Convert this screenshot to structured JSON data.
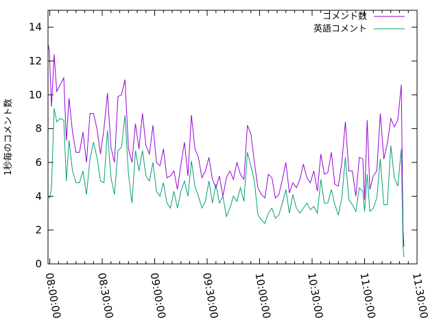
{
  "chart_data": {
    "type": "line",
    "title": "",
    "xlabel": "",
    "ylabel": "1秒毎のコメント数",
    "x_unit": "time",
    "xlim": [
      "07:59:00",
      "11:30:00"
    ],
    "ylim": [
      0,
      15
    ],
    "x_ticks": [
      "08:00:00",
      "08:30:00",
      "09:00:00",
      "09:30:00",
      "10:00:00",
      "10:30:00",
      "11:00:00",
      "11:30:00"
    ],
    "y_ticks": [
      0,
      2,
      4,
      6,
      8,
      10,
      12,
      14
    ],
    "grid": false,
    "legend": "top-right",
    "series": [
      {
        "name": "コメント数",
        "color": "#9400d3",
        "points": [
          [
            "07:59:00",
            13.0
          ],
          [
            "07:59:45",
            12.6
          ],
          [
            "08:01:00",
            9.3
          ],
          [
            "08:02:30",
            12.4
          ],
          [
            "08:04:00",
            10.2
          ],
          [
            "08:06:00",
            10.6
          ],
          [
            "08:08:00",
            11.0
          ],
          [
            "08:09:30",
            7.3
          ],
          [
            "08:11:00",
            9.8
          ],
          [
            "08:13:00",
            7.8
          ],
          [
            "08:15:00",
            6.6
          ],
          [
            "08:17:00",
            6.6
          ],
          [
            "08:19:00",
            7.8
          ],
          [
            "08:21:00",
            6.0
          ],
          [
            "08:23:00",
            8.9
          ],
          [
            "08:25:00",
            8.9
          ],
          [
            "08:27:00",
            8.0
          ],
          [
            "08:29:00",
            6.5
          ],
          [
            "08:31:00",
            8.0
          ],
          [
            "08:33:00",
            10.1
          ],
          [
            "08:35:00",
            6.9
          ],
          [
            "08:37:00",
            6.0
          ],
          [
            "08:39:00",
            9.9
          ],
          [
            "08:41:00",
            10.0
          ],
          [
            "08:43:00",
            10.9
          ],
          [
            "08:45:00",
            6.8
          ],
          [
            "08:47:00",
            6.0
          ],
          [
            "08:49:00",
            8.3
          ],
          [
            "08:51:00",
            6.8
          ],
          [
            "08:53:00",
            8.9
          ],
          [
            "08:55:00",
            7.0
          ],
          [
            "08:57:00",
            6.5
          ],
          [
            "08:59:00",
            8.2
          ],
          [
            "09:01:00",
            6.0
          ],
          [
            "09:03:00",
            5.8
          ],
          [
            "09:05:00",
            6.8
          ],
          [
            "09:07:00",
            5.1
          ],
          [
            "09:09:00",
            5.2
          ],
          [
            "09:11:00",
            5.5
          ],
          [
            "09:13:00",
            4.4
          ],
          [
            "09:15:00",
            5.9
          ],
          [
            "09:17:00",
            7.2
          ],
          [
            "09:19:00",
            5.2
          ],
          [
            "09:21:00",
            8.8
          ],
          [
            "09:23:00",
            6.8
          ],
          [
            "09:25:00",
            6.3
          ],
          [
            "09:27:00",
            5.1
          ],
          [
            "09:29:00",
            5.5
          ],
          [
            "09:31:00",
            6.3
          ],
          [
            "09:33:00",
            5.0
          ],
          [
            "09:35:00",
            4.5
          ],
          [
            "09:37:00",
            5.2
          ],
          [
            "09:39:00",
            4.0
          ],
          [
            "09:41:00",
            5.1
          ],
          [
            "09:43:00",
            5.5
          ],
          [
            "09:45:00",
            5.0
          ],
          [
            "09:47:00",
            6.0
          ],
          [
            "09:49:00",
            5.3
          ],
          [
            "09:51:00",
            5.0
          ],
          [
            "09:53:00",
            8.2
          ],
          [
            "09:55:00",
            7.7
          ],
          [
            "09:57:00",
            6.0
          ],
          [
            "09:59:00",
            4.5
          ],
          [
            "10:01:00",
            4.1
          ],
          [
            "10:03:00",
            3.9
          ],
          [
            "10:05:00",
            5.3
          ],
          [
            "10:07:00",
            5.1
          ],
          [
            "10:09:00",
            3.9
          ],
          [
            "10:11:00",
            4.1
          ],
          [
            "10:13:00",
            5.0
          ],
          [
            "10:15:00",
            6.0
          ],
          [
            "10:17:00",
            4.2
          ],
          [
            "10:19:00",
            4.8
          ],
          [
            "10:21:00",
            4.5
          ],
          [
            "10:23:00",
            5.0
          ],
          [
            "10:25:00",
            5.9
          ],
          [
            "10:27:00",
            5.1
          ],
          [
            "10:29:00",
            4.8
          ],
          [
            "10:31:00",
            5.5
          ],
          [
            "10:33:00",
            4.3
          ],
          [
            "10:35:00",
            6.5
          ],
          [
            "10:37:00",
            5.3
          ],
          [
            "10:39:00",
            5.4
          ],
          [
            "10:41:00",
            6.6
          ],
          [
            "10:43:00",
            4.7
          ],
          [
            "10:45:00",
            4.6
          ],
          [
            "10:47:00",
            6.0
          ],
          [
            "10:49:00",
            8.4
          ],
          [
            "10:51:00",
            5.5
          ],
          [
            "10:53:00",
            5.5
          ],
          [
            "10:55:00",
            4.0
          ],
          [
            "10:57:00",
            6.3
          ],
          [
            "10:59:00",
            6.2
          ],
          [
            "11:00:00",
            3.8
          ],
          [
            "11:01:30",
            8.5
          ],
          [
            "11:03:00",
            4.4
          ],
          [
            "11:05:00",
            5.2
          ],
          [
            "11:07:00",
            5.5
          ],
          [
            "11:09:00",
            8.9
          ],
          [
            "11:11:00",
            6.2
          ],
          [
            "11:13:00",
            7.1
          ],
          [
            "11:15:00",
            8.6
          ],
          [
            "11:17:00",
            8.1
          ],
          [
            "11:19:00",
            8.5
          ],
          [
            "11:21:00",
            10.6
          ],
          [
            "11:22:00",
            2.0
          ],
          [
            "11:22:30",
            1.0
          ]
        ]
      },
      {
        "name": "英語コメント",
        "color": "#009e73",
        "points": [
          [
            "07:59:00",
            4.0
          ],
          [
            "08:00:00",
            3.9
          ],
          [
            "08:01:00",
            4.5
          ],
          [
            "08:02:30",
            9.2
          ],
          [
            "08:04:00",
            8.4
          ],
          [
            "08:06:00",
            8.6
          ],
          [
            "08:08:00",
            8.5
          ],
          [
            "08:09:30",
            4.9
          ],
          [
            "08:11:00",
            7.3
          ],
          [
            "08:13:00",
            5.5
          ],
          [
            "08:15:00",
            4.8
          ],
          [
            "08:17:00",
            4.8
          ],
          [
            "08:19:00",
            5.5
          ],
          [
            "08:21:00",
            4.1
          ],
          [
            "08:23:00",
            6.2
          ],
          [
            "08:25:00",
            7.2
          ],
          [
            "08:27:00",
            6.3
          ],
          [
            "08:29:00",
            4.9
          ],
          [
            "08:31:00",
            4.8
          ],
          [
            "08:33:00",
            7.9
          ],
          [
            "08:35:00",
            5.1
          ],
          [
            "08:37:00",
            4.1
          ],
          [
            "08:39:00",
            6.7
          ],
          [
            "08:41:00",
            6.9
          ],
          [
            "08:43:00",
            8.8
          ],
          [
            "08:45:00",
            5.3
          ],
          [
            "08:47:00",
            3.6
          ],
          [
            "08:49:00",
            6.7
          ],
          [
            "08:51:00",
            5.5
          ],
          [
            "08:53:00",
            6.7
          ],
          [
            "08:55:00",
            5.2
          ],
          [
            "08:57:00",
            4.9
          ],
          [
            "08:59:00",
            6.0
          ],
          [
            "09:01:00",
            4.3
          ],
          [
            "09:03:00",
            4.0
          ],
          [
            "09:05:00",
            4.8
          ],
          [
            "09:07:00",
            3.6
          ],
          [
            "09:09:00",
            3.3
          ],
          [
            "09:11:00",
            4.3
          ],
          [
            "09:13:00",
            3.3
          ],
          [
            "09:15:00",
            4.3
          ],
          [
            "09:17:00",
            4.9
          ],
          [
            "09:19:00",
            4.0
          ],
          [
            "09:21:00",
            6.1
          ],
          [
            "09:23:00",
            4.6
          ],
          [
            "09:25:00",
            4.0
          ],
          [
            "09:27:00",
            3.3
          ],
          [
            "09:29:00",
            3.7
          ],
          [
            "09:31:00",
            4.9
          ],
          [
            "09:33:00",
            3.6
          ],
          [
            "09:35:00",
            4.7
          ],
          [
            "09:37:00",
            3.6
          ],
          [
            "09:39:00",
            4.0
          ],
          [
            "09:41:00",
            2.8
          ],
          [
            "09:43:00",
            3.3
          ],
          [
            "09:45:00",
            4.0
          ],
          [
            "09:47:00",
            3.7
          ],
          [
            "09:49:00",
            4.5
          ],
          [
            "09:51:00",
            3.7
          ],
          [
            "09:53:00",
            6.6
          ],
          [
            "09:55:00",
            5.8
          ],
          [
            "09:57:00",
            4.9
          ],
          [
            "09:59:00",
            2.9
          ],
          [
            "10:01:00",
            2.6
          ],
          [
            "10:03:00",
            2.4
          ],
          [
            "10:05:00",
            3.0
          ],
          [
            "10:07:00",
            3.3
          ],
          [
            "10:09:00",
            2.7
          ],
          [
            "10:11:00",
            2.9
          ],
          [
            "10:13:00",
            3.6
          ],
          [
            "10:15:00",
            4.4
          ],
          [
            "10:17:00",
            3.0
          ],
          [
            "10:19:00",
            4.1
          ],
          [
            "10:21:00",
            3.3
          ],
          [
            "10:23:00",
            3.0
          ],
          [
            "10:25:00",
            3.3
          ],
          [
            "10:27:00",
            3.6
          ],
          [
            "10:29:00",
            3.2
          ],
          [
            "10:31:00",
            3.4
          ],
          [
            "10:33:00",
            3.0
          ],
          [
            "10:35:00",
            5.0
          ],
          [
            "10:37:00",
            3.6
          ],
          [
            "10:39:00",
            3.6
          ],
          [
            "10:41:00",
            4.4
          ],
          [
            "10:43:00",
            3.5
          ],
          [
            "10:45:00",
            2.9
          ],
          [
            "10:47:00",
            3.9
          ],
          [
            "10:49:00",
            6.3
          ],
          [
            "10:51:00",
            3.8
          ],
          [
            "10:53:00",
            3.5
          ],
          [
            "10:55:00",
            3.1
          ],
          [
            "10:57:00",
            4.5
          ],
          [
            "10:59:00",
            4.3
          ],
          [
            "11:00:00",
            3.1
          ],
          [
            "11:01:30",
            5.3
          ],
          [
            "11:03:00",
            3.1
          ],
          [
            "11:05:00",
            3.3
          ],
          [
            "11:07:00",
            3.9
          ],
          [
            "11:09:00",
            6.2
          ],
          [
            "11:11:00",
            3.5
          ],
          [
            "11:13:00",
            3.5
          ],
          [
            "11:15:00",
            7.0
          ],
          [
            "11:17:00",
            5.1
          ],
          [
            "11:19:00",
            4.6
          ],
          [
            "11:21:00",
            6.8
          ],
          [
            "11:22:00",
            1.0
          ],
          [
            "11:22:30",
            0.4
          ]
        ]
      }
    ]
  }
}
